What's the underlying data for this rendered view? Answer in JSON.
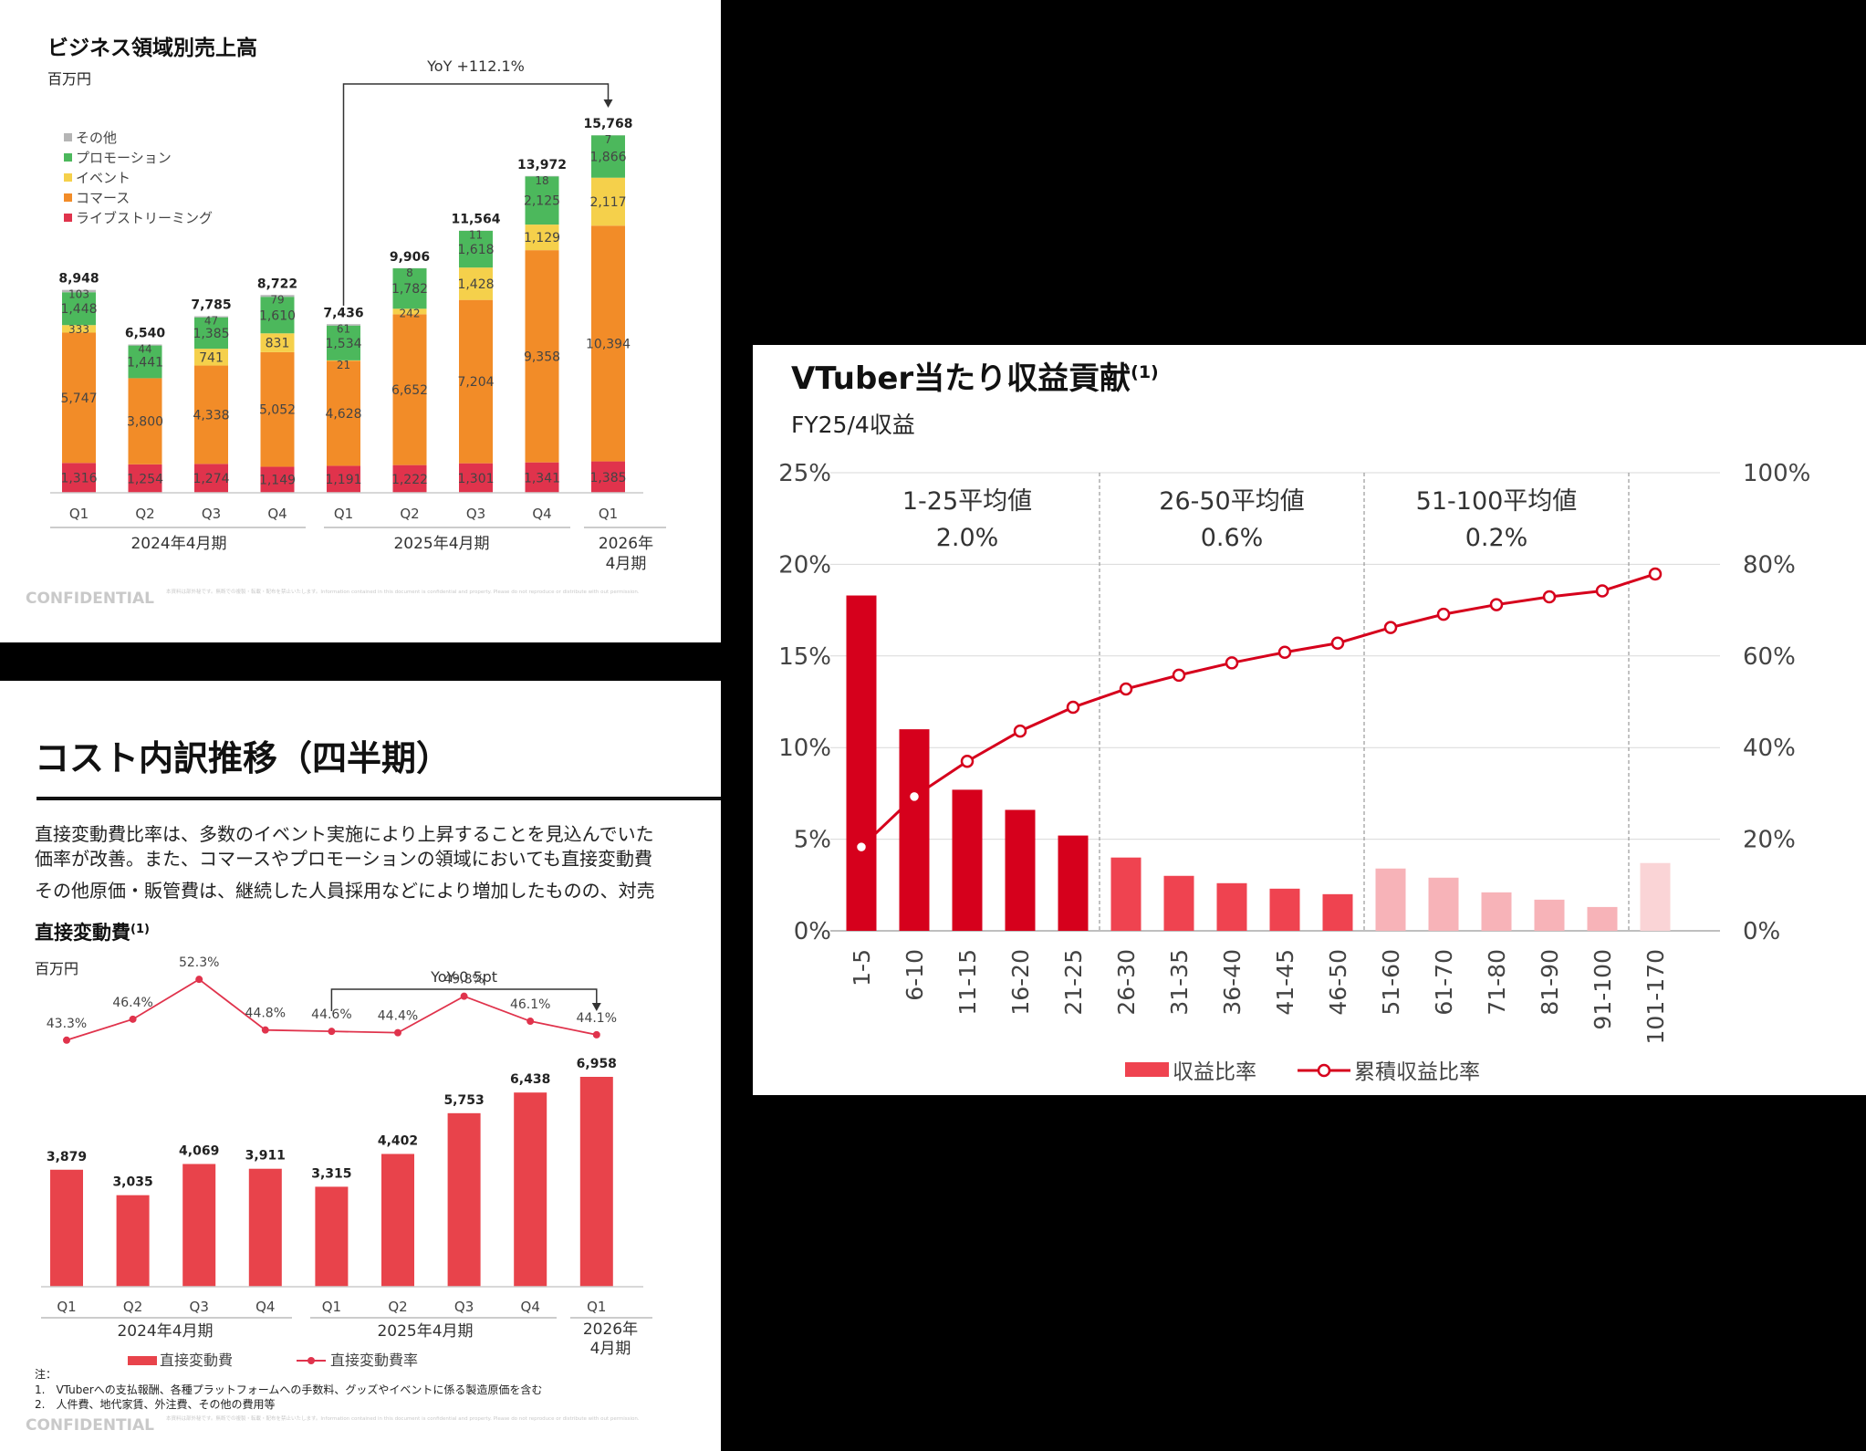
{
  "chart_data": [
    {
      "type": "bar",
      "stacked": true,
      "title": "ビジネス領域別売上高",
      "subtitle": "百万円",
      "categories": [
        "Q1",
        "Q2",
        "Q3",
        "Q4",
        "Q1",
        "Q2",
        "Q3",
        "Q4",
        "Q1"
      ],
      "groups": [
        {
          "label": "2024年4月期",
          "span": [
            0,
            3
          ]
        },
        {
          "label": "2025年4月期",
          "span": [
            4,
            7
          ]
        },
        {
          "label": "2026年4月期",
          "span": [
            8,
            8
          ]
        }
      ],
      "series": [
        {
          "name": "ライブストリーミング",
          "color": "#e0334c",
          "values": [
            1316,
            1254,
            1274,
            1149,
            1191,
            1222,
            1301,
            1341,
            1385
          ]
        },
        {
          "name": "コマース",
          "color": "#f28c28",
          "values": [
            5747,
            3800,
            4338,
            5052,
            4628,
            6652,
            7204,
            9358,
            10394
          ]
        },
        {
          "name": "イベント",
          "color": "#f5d04b",
          "values": [
            333,
            0,
            741,
            831,
            21,
            242,
            1428,
            1129,
            2117
          ]
        },
        {
          "name": "プロモーション",
          "color": "#4cb85c",
          "values": [
            1448,
            1441,
            1385,
            1610,
            1534,
            1782,
            1618,
            2125,
            1866
          ]
        },
        {
          "name": "その他",
          "color": "#b5b5b5",
          "values": [
            103,
            44,
            47,
            79,
            61,
            8,
            11,
            18,
            7
          ]
        }
      ],
      "totals": [
        8948,
        6540,
        7785,
        8722,
        7436,
        9906,
        11564,
        13972,
        15768
      ],
      "annotation": "YoY +112.1%",
      "ylim": [
        0,
        16500
      ],
      "footer": {
        "confidential": "CONFIDENTIAL",
        "note": "本資料は部外秘です。無断での複製・転載・配布を禁止いたします。Information contained in this document is confidential and property. Please do not reproduce or distribute with out permission."
      }
    },
    {
      "type": "bar",
      "title": "コスト内訳推移（四半期）",
      "description_lines": [
        "直接変動費比率は、多数のイベント実施により上昇することを見込んでいた",
        "価率が改善。また、コマースやプロモーションの領域においても直接変動費",
        "その他原価・販管費は、継続した人員採用などにより増加したものの、対売"
      ],
      "section_title": "直接変動費",
      "section_sup": "(1)",
      "subtitle": "百万円",
      "categories": [
        "Q1",
        "Q2",
        "Q3",
        "Q4",
        "Q1",
        "Q2",
        "Q3",
        "Q4",
        "Q1"
      ],
      "groups": [
        {
          "label": "2024年4月期",
          "span": [
            0,
            3
          ]
        },
        {
          "label": "2025年4月期",
          "span": [
            4,
            7
          ]
        },
        {
          "label": "2026年4月期",
          "span": [
            8,
            8
          ]
        }
      ],
      "series": [
        {
          "name": "直接変動費",
          "color": "#e8434b",
          "values": [
            3879,
            3035,
            4069,
            3911,
            3315,
            4402,
            5753,
            6438,
            6958
          ]
        },
        {
          "name": "直接変動費率",
          "color": "#e0334c",
          "values": [
            43.3,
            46.4,
            52.3,
            44.8,
            44.6,
            44.4,
            49.8,
            46.1,
            44.1
          ],
          "labels": [
            "43.3%",
            "46.4%",
            "52.3%",
            "44.8%",
            "44.6%",
            "44.4%",
            "49.8%",
            "46.1%",
            "44.1%"
          ]
        }
      ],
      "annotation": "YoY-0.5pt",
      "notes": [
        "注：",
        "1.　VTuberへの支払報酬、各種プラットフォームへの手数料、グッズやイベントに係る製造原価を含む",
        "2.　人件費、地代家賃、外注費、その他の費用等"
      ],
      "footer": {
        "confidential": "CONFIDENTIAL",
        "note": "本資料は部外秘です。無断での複製・転載・配布を禁止いたします。Information contained in this document is confidential and property. Please do not reproduce or distribute with out permission."
      }
    },
    {
      "type": "bar",
      "title": "VTuber当たり収益貢献",
      "title_sup": "(1)",
      "subtitle": "FY25/4収益",
      "categories": [
        "1-5",
        "6-10",
        "11-15",
        "16-20",
        "21-25",
        "26-30",
        "31-35",
        "36-40",
        "41-45",
        "46-50",
        "51-60",
        "61-70",
        "71-80",
        "81-90",
        "91-100",
        "101-170"
      ],
      "series": [
        {
          "name": "収益比率",
          "values": [
            18.3,
            11.0,
            7.7,
            6.6,
            5.2,
            4.0,
            3.0,
            2.6,
            2.3,
            2.0,
            3.4,
            2.9,
            2.1,
            1.7,
            1.3,
            3.7
          ]
        },
        {
          "name": "累積収益比率",
          "values": [
            18.3,
            29.3,
            37.0,
            43.6,
            48.8,
            52.8,
            55.8,
            58.5,
            60.8,
            62.8,
            66.2,
            69.1,
            71.2,
            72.9,
            74.2,
            77.9
          ]
        }
      ],
      "bar_colors": [
        "#d6001c",
        "#d6001c",
        "#d6001c",
        "#d6001c",
        "#d6001c",
        "#ef4350",
        "#ef4350",
        "#ef4350",
        "#ef4350",
        "#ef4350",
        "#f7b3b8",
        "#f7b3b8",
        "#f7b3b8",
        "#f7b3b8",
        "#f7b3b8",
        "#fad4d6"
      ],
      "y_left": {
        "ticks": [
          "0%",
          "5%",
          "10%",
          "15%",
          "20%",
          "25%"
        ],
        "range": [
          0,
          25
        ]
      },
      "y_right": {
        "ticks": [
          "0%",
          "20%",
          "40%",
          "60%",
          "80%",
          "100%"
        ],
        "range": [
          0,
          100
        ]
      },
      "averages": [
        {
          "label": "1-25平均値",
          "value": "2.0%"
        },
        {
          "label": "26-50平均値",
          "value": "0.6%"
        },
        {
          "label": "51-100平均値",
          "value": "0.2%"
        }
      ]
    }
  ]
}
